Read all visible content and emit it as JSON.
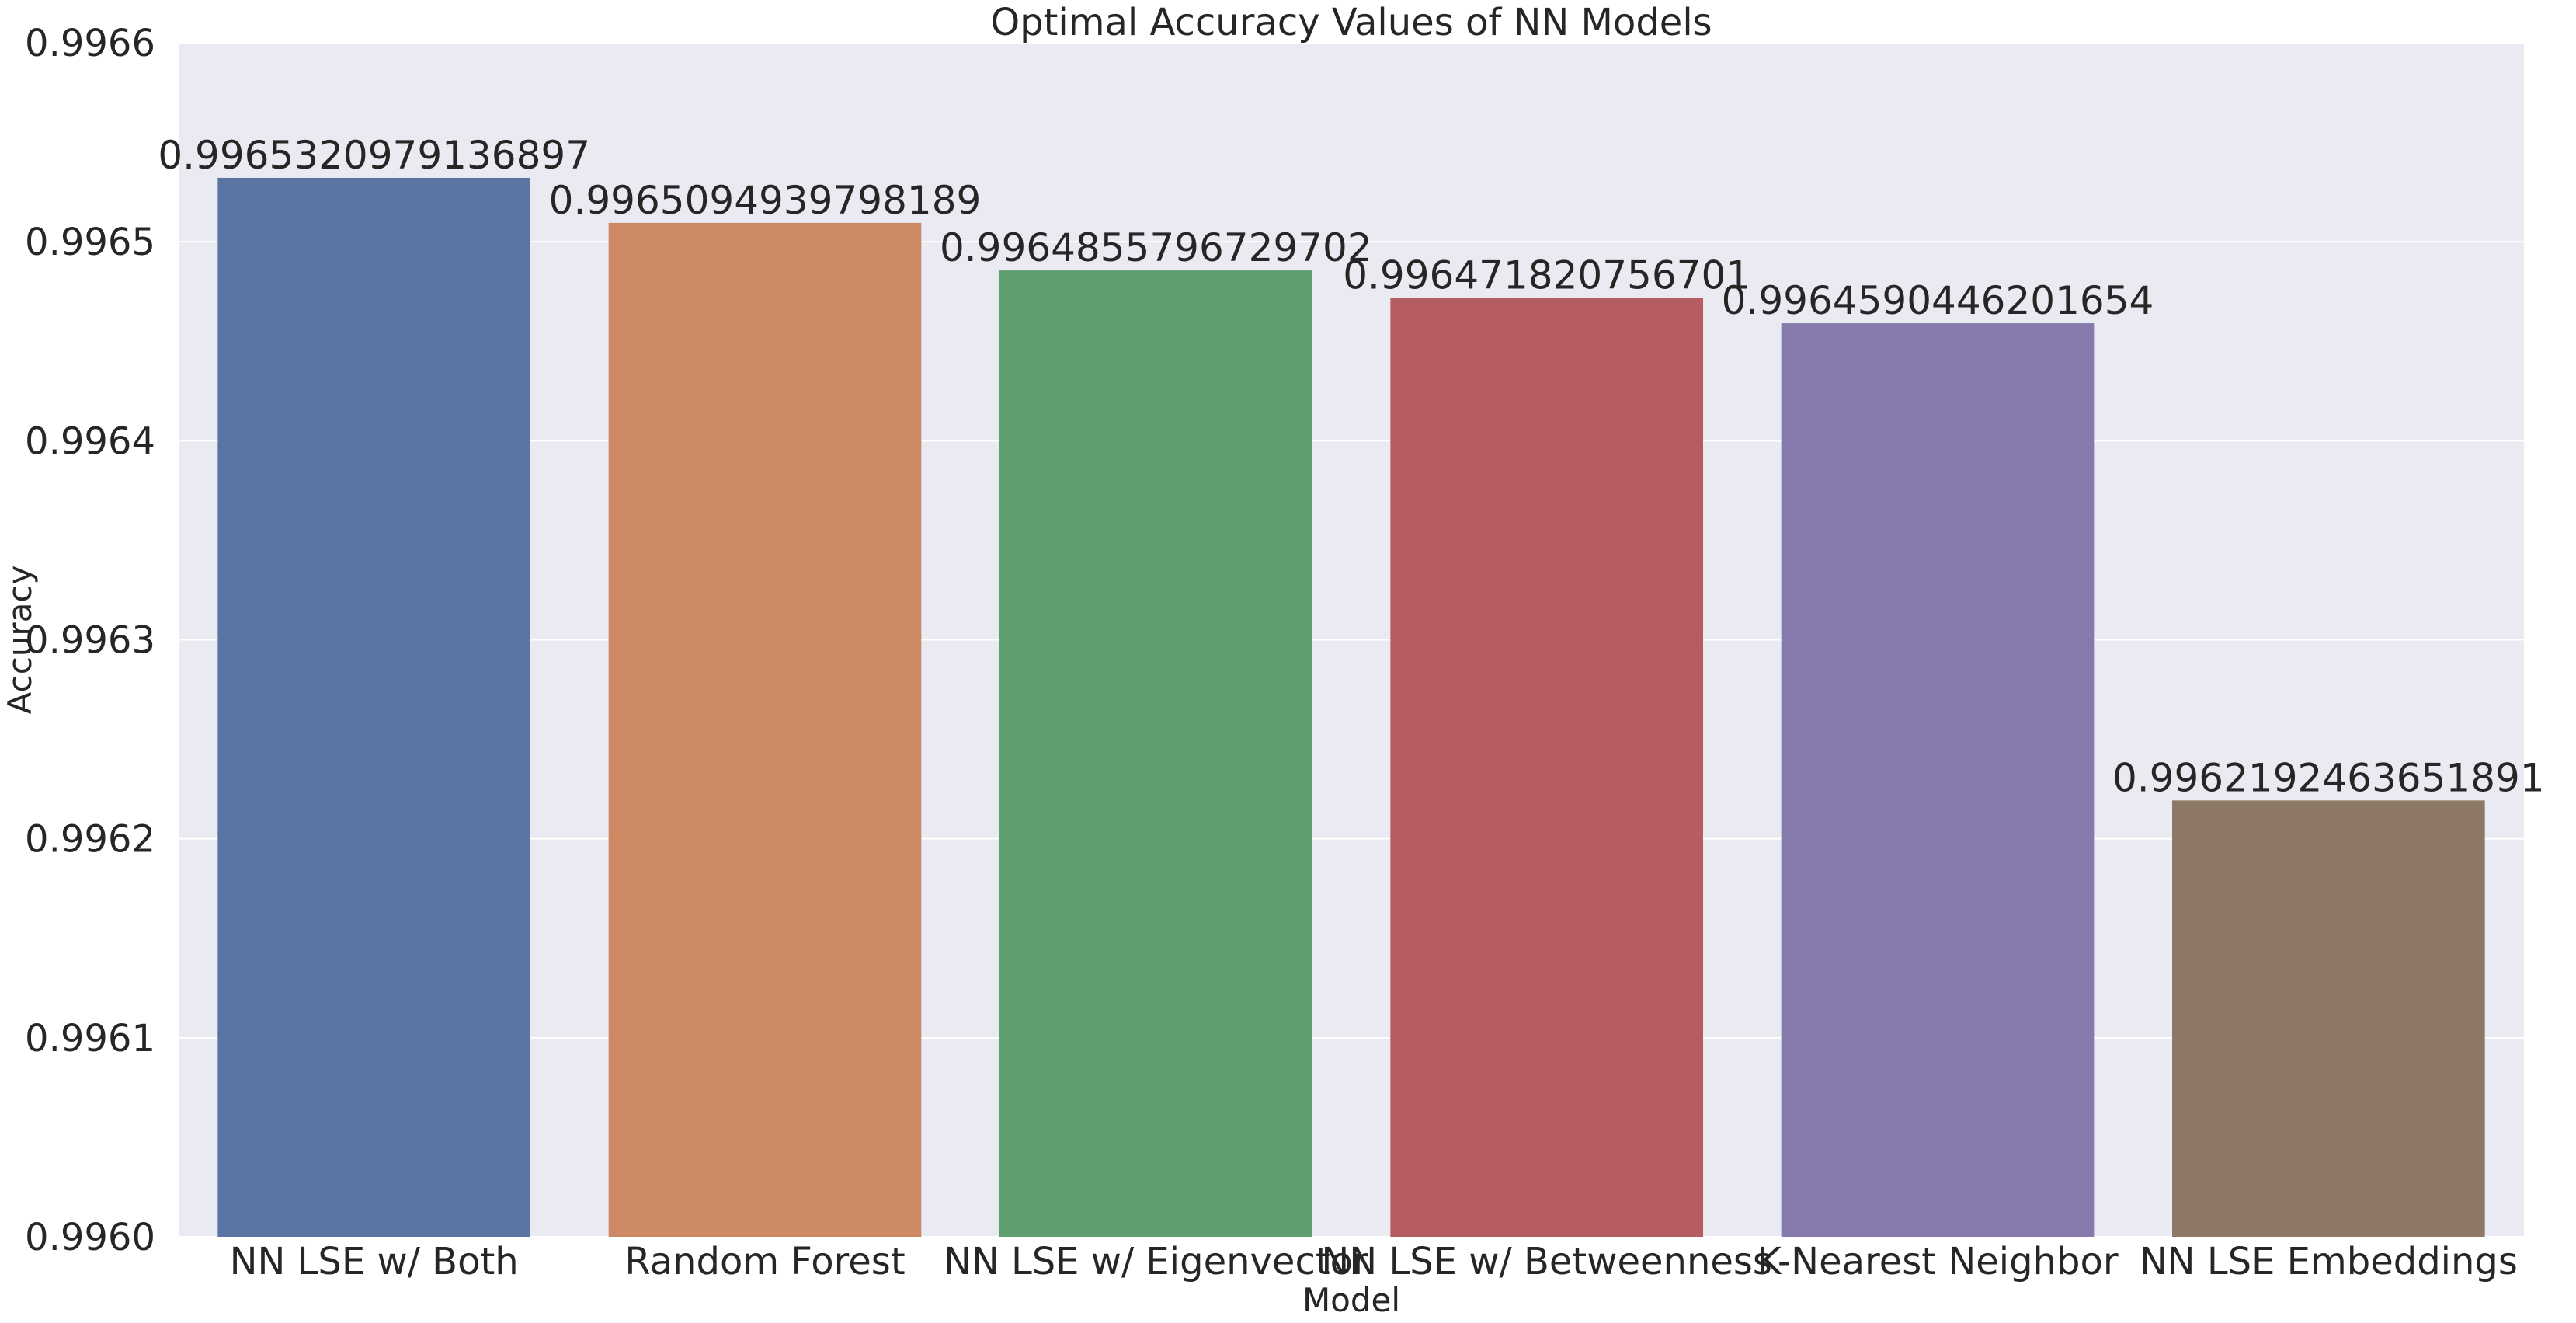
{
  "chart_data": {
    "type": "bar",
    "title": "Optimal Accuracy Values of NN Models",
    "xlabel": "Model",
    "ylabel": "Accuracy",
    "ylim": [
      0.996,
      0.9966
    ],
    "yticks": [
      0.996,
      0.9961,
      0.9962,
      0.9963,
      0.9964,
      0.9965,
      0.9966
    ],
    "ytick_labels": [
      "0.9960",
      "0.9961",
      "0.9962",
      "0.9963",
      "0.9964",
      "0.9965",
      "0.9966"
    ],
    "grid": true,
    "categories": [
      "NN LSE w/ Both",
      "Random Forest",
      "NN LSE w/ Eigenvector",
      "NN LSE w/ Betweenness",
      "K-Nearest Neighbor",
      "NN LSE Embeddings"
    ],
    "values": [
      0.9965320979136897,
      0.9965094939798189,
      0.9964855796729702,
      0.996471820756701,
      0.9964590446201654,
      0.9962192463651891
    ],
    "data_labels": [
      "0.9965320979136897",
      "0.9965094939798189",
      "0.9964855796729702",
      "0.996471820756701",
      "0.9964590446201654",
      "0.9962192463651891"
    ],
    "colors": [
      "#5875a4",
      "#cc8963",
      "#5f9e6e",
      "#b55d60",
      "#857aab",
      "#8d7866"
    ],
    "background": "#eaeaf2",
    "grid_color": "#ffffff"
  }
}
